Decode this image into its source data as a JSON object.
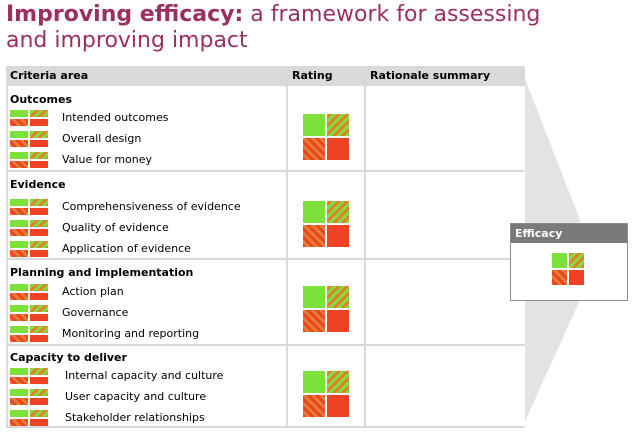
{
  "title": {
    "bold": "Improving efficacy:",
    "rest": " a framework for assessing",
    "line2": "and improving impact"
  },
  "headers": {
    "criteria": "Criteria area",
    "rating": "Rating",
    "rationale": "Rationale summary"
  },
  "sections": [
    {
      "title": "Outcomes",
      "items": [
        "Intended outcomes",
        "Overall design",
        "Value for money"
      ]
    },
    {
      "title": "Evidence",
      "items": [
        "Comprehensiveness of evidence",
        "Quality of evidence",
        "Application of evidence"
      ]
    },
    {
      "title": "Planning and implementation",
      "items": [
        "Action plan",
        "Governance",
        "Monitoring and reporting"
      ]
    },
    {
      "title": "Capacity to deliver",
      "items": [
        "Internal capacity and culture",
        "User capacity and culture",
        "Stakeholder relationships"
      ]
    }
  ],
  "efficacy": {
    "label": "Efficacy"
  },
  "colors": {
    "green": "#7ee03a",
    "red": "#ef4123",
    "hatch_orange": "#e57f2f",
    "title": "#9b2f5e",
    "header_bg": "#d9d9d9",
    "efficacy_head": "#7a7a7a"
  }
}
